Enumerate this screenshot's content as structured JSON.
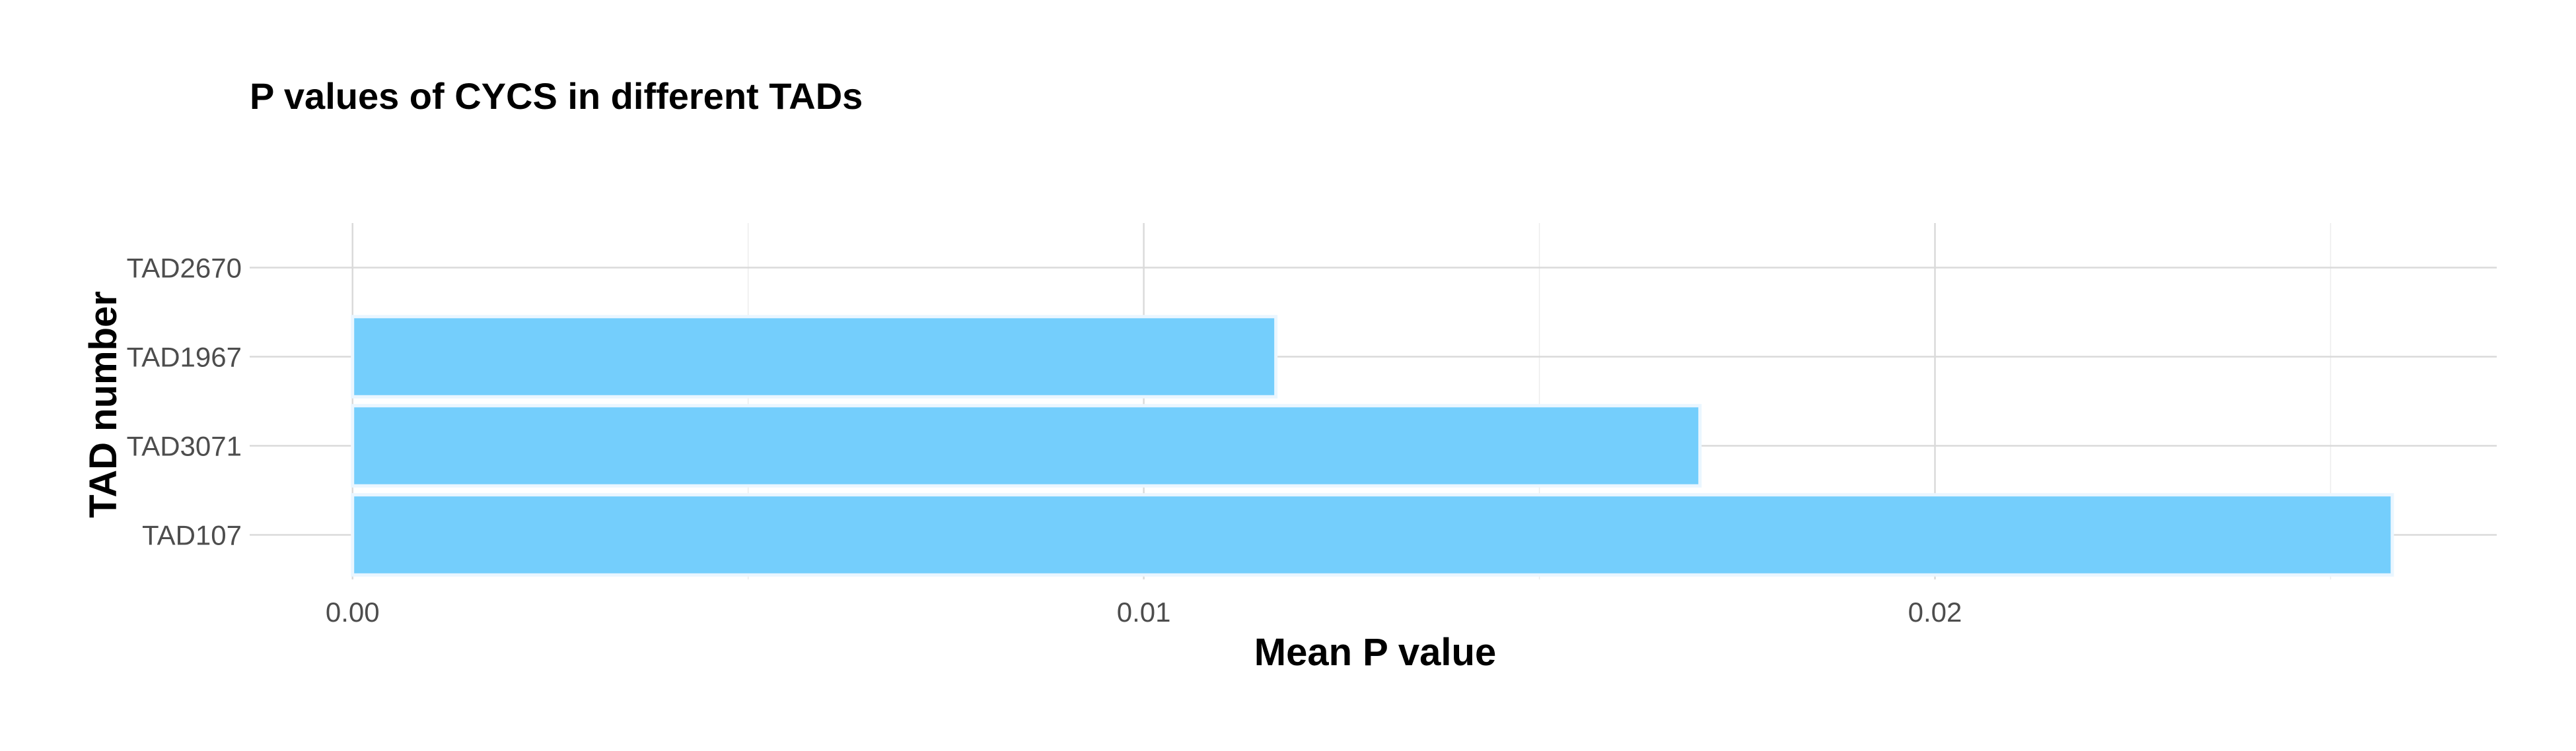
{
  "chart_data": {
    "type": "bar",
    "orientation": "horizontal",
    "title": "P values of CYCS in different TADs",
    "xlabel": "Mean P value",
    "ylabel": "TAD number",
    "categories": [
      "TAD2670",
      "TAD1967",
      "TAD3071",
      "TAD107"
    ],
    "values": [
      0.0,
      0.01167,
      0.01703,
      0.02578
    ],
    "xlim": [
      -0.0013,
      0.0271
    ],
    "x_ticks": [
      0.0,
      0.01,
      0.02
    ],
    "x_tick_labels": [
      "0.00",
      "0.01",
      "0.02"
    ],
    "x_minor_ticks": [
      0.005,
      0.015,
      0.025
    ],
    "grid": true,
    "bar_color": "#74cefc",
    "bar_outline_color": "#eaf6ff",
    "grid_color": "#dadada"
  }
}
